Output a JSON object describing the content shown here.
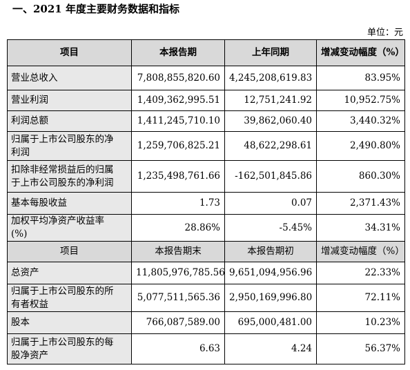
{
  "title": "一、2021 年度主要财务数据和指标",
  "unit": "单位：元",
  "table": {
    "header": [
      "项目",
      "本报告期",
      "上年同期",
      "增减变动幅度（%）"
    ],
    "rows": [
      [
        "营业总收入",
        "7,808,855,820.60",
        "4,245,208,619.83",
        "83.95%"
      ],
      [
        "营业利润",
        "1,409,362,995.51",
        "12,751,241.92",
        "10,952.75%"
      ],
      [
        "利润总额",
        "1,411,245,710.10",
        "39,862,060.40",
        "3,440.32%"
      ],
      [
        "归属于上市公司股东的净利润",
        "1,259,706,825.21",
        "48,622,298.61",
        "2,490.80%"
      ],
      [
        "扣除非经常损益后的归属于上市公司股东的净利润",
        "1,235,498,761.66",
        "-162,501,845.86",
        "860.30%"
      ],
      [
        "基本每股收益",
        "1.73",
        "0.07",
        "2,371.43%"
      ],
      [
        "加权平均净资产收益率 (%)",
        "28.86%",
        "-5.45%",
        "34.31%"
      ]
    ],
    "header2": [
      "项目",
      "本报告期末",
      "本报告期初",
      "增减变动幅度（%）"
    ],
    "rows2": [
      [
        "总资产",
        "11,805,976,785.56",
        "9,651,094,956.96",
        "22.33%"
      ],
      [
        "归属于上市公司股东的所有者权益",
        "5,077,511,565.36",
        "2,950,169,996.80",
        "72.11%"
      ],
      [
        "股本",
        "766,087,589.00",
        "695,000,481.00",
        "10.23%"
      ],
      [
        "归属于上市公司股东的每股净资产",
        "6.63",
        "4.24",
        "56.37%"
      ]
    ]
  }
}
